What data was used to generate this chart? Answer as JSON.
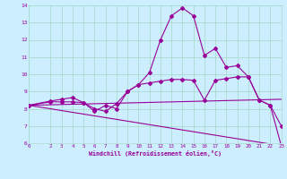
{
  "xlabel": "Windchill (Refroidissement éolien,°C)",
  "background_color": "#cceeff",
  "grid_color": "#aaddcc",
  "line_color": "#990099",
  "xlim": [
    0,
    23
  ],
  "ylim": [
    6,
    14
  ],
  "xtick_values": [
    0,
    2,
    3,
    4,
    5,
    6,
    7,
    8,
    9,
    10,
    11,
    12,
    13,
    14,
    15,
    16,
    17,
    18,
    19,
    20,
    21,
    22,
    23
  ],
  "xtick_labels": [
    "0",
    "2",
    "3",
    "4",
    "5",
    "6",
    "7",
    "8",
    "9",
    "10",
    "11",
    "12",
    "13",
    "14",
    "15",
    "16",
    "17",
    "18",
    "19",
    "20",
    "21",
    "22",
    "23"
  ],
  "ytick_values": [
    6,
    7,
    8,
    9,
    10,
    11,
    12,
    13,
    14
  ],
  "ytick_labels": [
    "6",
    "7",
    "8",
    "9",
    "10",
    "11",
    "12",
    "13",
    "14"
  ],
  "curve1_x": [
    0,
    2,
    3,
    4,
    5,
    6,
    7,
    8,
    9,
    10,
    11,
    12,
    13,
    14,
    15,
    16,
    17,
    18,
    19,
    20,
    21,
    22,
    23
  ],
  "curve1_y": [
    8.2,
    8.4,
    8.4,
    8.4,
    8.35,
    7.85,
    8.2,
    8.0,
    9.0,
    9.4,
    10.1,
    12.0,
    13.4,
    13.85,
    13.4,
    11.1,
    11.5,
    10.4,
    10.5,
    9.85,
    8.5,
    8.2,
    7.0
  ],
  "curve2_x": [
    0,
    2,
    3,
    4,
    5,
    6,
    7,
    8,
    9,
    10,
    11,
    12,
    13,
    14,
    15,
    16,
    17,
    18,
    19,
    20,
    21,
    22,
    23
  ],
  "curve2_y": [
    8.2,
    8.45,
    8.55,
    8.65,
    8.35,
    8.0,
    7.85,
    8.3,
    9.0,
    9.4,
    9.5,
    9.6,
    9.7,
    9.7,
    9.65,
    8.5,
    9.65,
    9.75,
    9.85,
    9.85,
    8.5,
    8.2,
    5.85
  ],
  "line1_x": [
    0,
    23
  ],
  "line1_y": [
    8.2,
    8.55
  ],
  "line2_x": [
    0,
    23
  ],
  "line2_y": [
    8.2,
    5.85
  ]
}
